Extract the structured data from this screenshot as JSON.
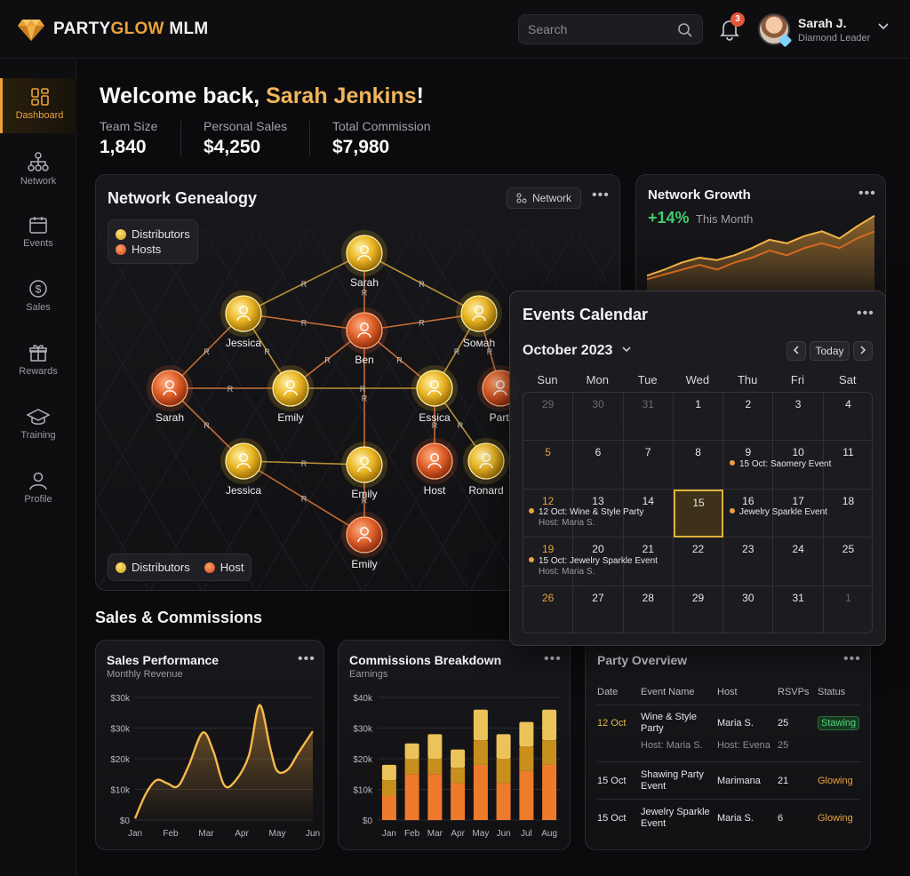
{
  "brand": {
    "name_a": "PARTY",
    "name_b": "GLOW",
    "name_c": " MLM"
  },
  "search": {
    "placeholder": "Search"
  },
  "notifications": {
    "count": "3"
  },
  "user": {
    "name": "Sarah J.",
    "role": "Diamond Leader"
  },
  "sidebar": {
    "items": [
      {
        "label": "Dashboard",
        "icon": "dashboard-icon"
      },
      {
        "label": "Network",
        "icon": "network-icon"
      },
      {
        "label": "Events",
        "icon": "calendar-icon"
      },
      {
        "label": "Sales",
        "icon": "dollar-icon"
      },
      {
        "label": "Rewards",
        "icon": "gift-icon"
      },
      {
        "label": "Training",
        "icon": "graduation-cap-icon"
      },
      {
        "label": "Profile",
        "icon": "user-icon"
      }
    ]
  },
  "welcome": {
    "prefix": "Welcome back, ",
    "name": "Sarah Jenkins",
    "suffix": "!"
  },
  "stats": [
    {
      "label": "Team Size",
      "value": "1,840"
    },
    {
      "label": "Personal Sales",
      "value": "$4,250"
    },
    {
      "label": "Total Commission",
      "value": "$7,980"
    }
  ],
  "genealogy": {
    "title": "Network Genealogy",
    "button": "Network",
    "legend_top": [
      "Distributors",
      "Hosts"
    ],
    "legend_bottom": [
      "Distributors",
      "Host"
    ],
    "edge_label": "R",
    "nodes": [
      {
        "name": "Sarah",
        "kind": "gold"
      },
      {
        "name": "Jessica",
        "kind": "gold"
      },
      {
        "name": "Ben",
        "kind": "orange"
      },
      {
        "name": "Sомah",
        "kind": "gold"
      },
      {
        "name": "Sarah",
        "kind": "orange"
      },
      {
        "name": "Emily",
        "kind": "gold"
      },
      {
        "name": "Essica",
        "kind": "gold"
      },
      {
        "name": "Parti",
        "kind": "orange"
      },
      {
        "name": "Jessica",
        "kind": "gold"
      },
      {
        "name": "Emily",
        "kind": "gold"
      },
      {
        "name": "Host",
        "kind": "orange"
      },
      {
        "name": "Ronard",
        "kind": "gold"
      },
      {
        "name": "Emily",
        "kind": "orange"
      }
    ]
  },
  "growth": {
    "title": "Network Growth",
    "delta": "+14%",
    "period": "This Month"
  },
  "calendar": {
    "title": "Events Calendar",
    "month": "October 2023",
    "today_label": "Today",
    "weekdays": [
      "Sun",
      "Mon",
      "Tue",
      "Wed",
      "Thu",
      "Fri",
      "Sat"
    ],
    "days": [
      "29",
      "30",
      "31",
      "1",
      "2",
      "3",
      "4",
      "5",
      "6",
      "7",
      "8",
      "9",
      "10",
      "11",
      "12",
      "13",
      "14",
      "15",
      "16",
      "17",
      "18",
      "19",
      "20",
      "21",
      "22",
      "23",
      "24",
      "25",
      "26",
      "27",
      "28",
      "29",
      "30",
      "31",
      "1"
    ],
    "events": [
      {
        "title": "15 Oct: Saomery Event",
        "sub": ""
      },
      {
        "title": "12 Oct: Wine & Style Party",
        "sub": "Host: Maria S."
      },
      {
        "title": "Jewelry Sparkle Event",
        "sub": ""
      },
      {
        "title": "15 Oct: Jewelry Sparkle Event",
        "sub": "Host: Maria S."
      }
    ]
  },
  "sales_section": {
    "title": "Sales & Commissions"
  },
  "sales_performance": {
    "title": "Sales Performance",
    "subtitle": "Monthly Revenue",
    "y_ticks": [
      "$30k",
      "$30k",
      "$20k",
      "$10k",
      "$0"
    ],
    "x_ticks": [
      "Jan",
      "Feb",
      "Mar",
      "Apr",
      "May",
      "Jun"
    ]
  },
  "commissions": {
    "title": "Commissions Breakdown",
    "subtitle": "Earnings",
    "y_ticks": [
      "$40k",
      "$30k",
      "$20k",
      "$10k",
      "$0"
    ],
    "x_ticks": [
      "Jan",
      "Feb",
      "Mar",
      "Apr",
      "May",
      "Jun",
      "Jul",
      "Aug"
    ]
  },
  "party_overview": {
    "title": "Party Overview",
    "headers": [
      "Date",
      "Event Name",
      "Host",
      "RSVPs",
      "Status"
    ],
    "rows": [
      {
        "date": "12 Oct",
        "event": "Wine & Style Party",
        "host": "Maria S.",
        "rsvps": "25",
        "status": "Stawing",
        "sub_event": "Host: Maria S.",
        "sub_host": "Host: Evena",
        "sub_rsvps": "25"
      },
      {
        "date": "15 Oct",
        "event": "Shawing Party Event",
        "host": "Marimana",
        "rsvps": "21",
        "status": "Glowing"
      },
      {
        "date": "15 Oct",
        "event": "Jewelry Sparkle Event",
        "host": "Maria S.",
        "rsvps": "6",
        "status": "Glowing"
      }
    ]
  },
  "chart_data": [
    {
      "type": "area",
      "title": "Sales Performance",
      "subtitle": "Monthly Revenue",
      "categories": [
        "Jan",
        "Feb",
        "Mar",
        "Apr",
        "May",
        "Jun"
      ],
      "y_tick_labels": [
        "$30k",
        "$30k",
        "$20k",
        "$10k",
        "$0"
      ],
      "x": [
        0.0,
        0.3,
        0.6,
        0.9,
        1.2,
        1.5,
        1.9,
        2.2,
        2.5,
        2.8,
        3.2,
        3.5,
        3.8,
        4.0,
        4.3,
        4.6,
        5.0
      ],
      "values": [
        0.5,
        8.5,
        13.0,
        12.0,
        11.0,
        17.5,
        28.5,
        22.5,
        11.5,
        12.5,
        21.0,
        37.5,
        23.5,
        16.0,
        16.5,
        22.0,
        29.0
      ],
      "ylim": [
        0,
        40
      ],
      "grid": true
    },
    {
      "type": "bar",
      "title": "Commissions Breakdown",
      "subtitle": "Earnings",
      "categories": [
        "Jan",
        "Feb",
        "Mar",
        "Apr",
        "May",
        "Jun",
        "Jul",
        "Aug"
      ],
      "series": [
        {
          "values": [
            8,
            15,
            15,
            12,
            18,
            12,
            16,
            18
          ]
        },
        {
          "values": [
            5,
            5,
            5,
            5,
            8,
            8,
            8,
            8
          ]
        },
        {
          "values": [
            5,
            5,
            8,
            6,
            10,
            8,
            8,
            10
          ]
        }
      ],
      "y_tick_labels": [
        "$40k",
        "$30k",
        "$20k",
        "$10k",
        "$0"
      ],
      "ylim": [
        0,
        40
      ],
      "stacked": true,
      "grid": true
    },
    {
      "type": "area",
      "title": "Network Growth",
      "series": [
        {
          "values": [
            5,
            10,
            16,
            20,
            18,
            22,
            28,
            35,
            32,
            38,
            42,
            36,
            46,
            55
          ]
        },
        {
          "values": [
            2,
            6,
            10,
            14,
            10,
            16,
            20,
            26,
            22,
            28,
            32,
            28,
            36,
            42
          ]
        }
      ]
    }
  ]
}
